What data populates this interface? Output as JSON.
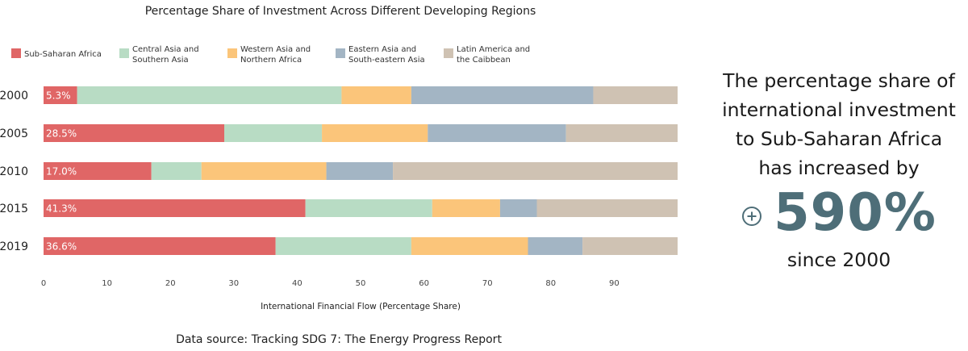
{
  "chart_data": {
    "type": "bar",
    "orientation": "horizontal",
    "stacked": true,
    "title": "Percentage Share of Investment Across Different Developing Regions",
    "xlabel": "International Financial Flow (Percentage Share)",
    "categories": [
      "2000",
      "2005",
      "2010",
      "2015",
      "2019"
    ],
    "xlim": [
      0,
      100
    ],
    "x_ticks": [
      "0",
      "10",
      "20",
      "30",
      "40",
      "50",
      "60",
      "70",
      "80",
      "90"
    ],
    "legend_position": "top",
    "series": [
      {
        "name": "Sub-Saharan Africa",
        "legend_lines": [
          "Sub-Saharan Africa"
        ],
        "color": "#e06666",
        "values": [
          5.3,
          28.5,
          17.0,
          41.3,
          36.6
        ],
        "labels": [
          "5.3%",
          "28.5%",
          "17.0%",
          "41.3%",
          "36.6%"
        ]
      },
      {
        "name": "Central Asia and Southern Asia",
        "legend_lines": [
          "Central Asia and",
          "Southern Asia"
        ],
        "color": "#b8dcc4",
        "values": [
          41.7,
          15.4,
          7.9,
          20.0,
          21.4
        ]
      },
      {
        "name": "Western Asia and Northern Africa",
        "legend_lines": [
          "Western Asia and",
          "Northern Africa"
        ],
        "color": "#fbc57a",
        "values": [
          11.0,
          16.7,
          19.7,
          10.7,
          18.4
        ]
      },
      {
        "name": "Eastern Asia and South-eastern Asia",
        "legend_lines": [
          "Eastern Asia and",
          "South-eastern Asia"
        ],
        "color": "#a3b5c4",
        "values": [
          28.7,
          21.8,
          10.5,
          5.8,
          8.6
        ]
      },
      {
        "name": "Latin America and the Caibbean",
        "legend_lines": [
          "Latin America and",
          "the Caibbean"
        ],
        "color": "#cfc2b3",
        "values": [
          13.3,
          17.6,
          44.9,
          22.2,
          15.0
        ]
      }
    ]
  },
  "summary": {
    "lines": [
      "The percentage share of",
      "international investment",
      "to Sub-Saharan Africa",
      "has increased by"
    ],
    "highlight_value": "590%",
    "highlight_color": "#4e6e78",
    "since_text": "since 2000",
    "icon": "plus-circle-icon"
  },
  "source": "Data source: Tracking SDG 7: The Energy Progress Report"
}
